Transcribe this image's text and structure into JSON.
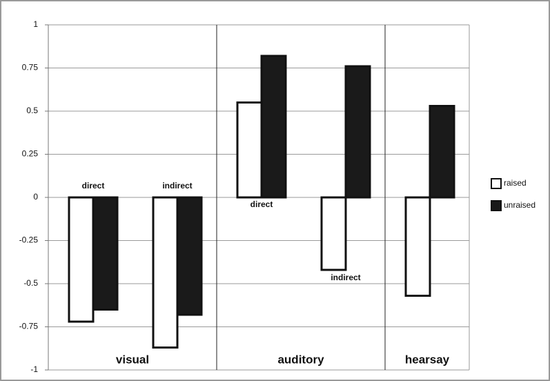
{
  "chart_data": {
    "type": "bar",
    "categories": [
      "direct",
      "indirect",
      "direct",
      "indirect",
      null
    ],
    "groups": [
      {
        "name": "visual",
        "size": 2
      },
      {
        "name": "auditory",
        "size": 2
      },
      {
        "name": "hearsay",
        "size": 1
      }
    ],
    "series": [
      {
        "name": "raised",
        "color": "#ffffff",
        "values": [
          -0.72,
          -0.87,
          0.55,
          -0.42,
          -0.57
        ]
      },
      {
        "name": "unraised",
        "color": "#1a1a1a",
        "values": [
          -0.65,
          -0.68,
          0.82,
          0.76,
          0.53
        ]
      }
    ],
    "ylim": [
      -1,
      1
    ],
    "yticks": [
      -1,
      -0.75,
      -0.5,
      -0.25,
      0,
      0.25,
      0.5,
      0.75,
      1
    ],
    "grid": true,
    "legend": "right"
  }
}
